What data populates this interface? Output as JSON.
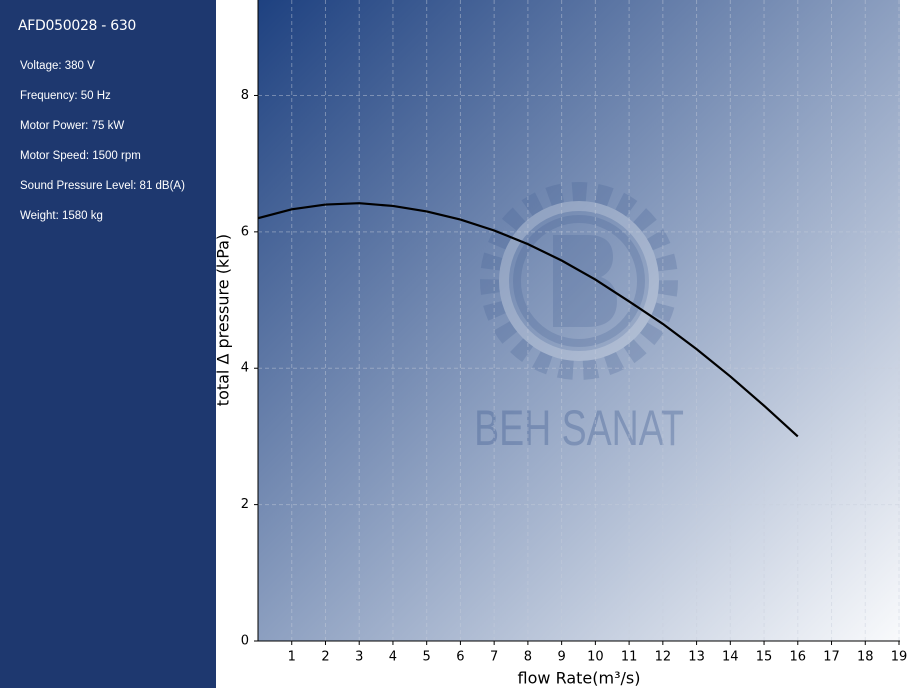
{
  "sidebar": {
    "title": "AFD050028 - 630",
    "specs": [
      "Voltage: 380 V",
      "Frequency: 50 Hz",
      "Motor Power: 75 kW",
      "Motor Speed: 1500 rpm",
      "Sound Pressure Level: 81 dB(A)",
      "Weight: 1580 kg"
    ]
  },
  "watermark": "BEH SANAT",
  "chart_data": {
    "type": "line",
    "x_label": "flow Rate(m³/s)",
    "y_label": "total Δ pressure (kPa)",
    "x": [
      0,
      1,
      2,
      3,
      4,
      5,
      6,
      7,
      8,
      9,
      10,
      11,
      12,
      13,
      14,
      15,
      16
    ],
    "series": [
      {
        "color": "#000000",
        "values": [
          6.2,
          6.33,
          6.4,
          6.42,
          6.38,
          6.3,
          6.18,
          6.02,
          5.82,
          5.58,
          5.3,
          4.98,
          4.65,
          4.28,
          3.88,
          3.45,
          3.0
        ]
      }
    ],
    "xlim": [
      0,
      19
    ],
    "xticks": [
      1,
      2,
      3,
      4,
      5,
      6,
      7,
      8,
      9,
      10,
      11,
      12,
      13,
      14,
      15,
      16,
      17,
      18,
      19
    ],
    "ylim": [
      0,
      9.4
    ],
    "yticks": [
      0,
      2,
      4,
      6,
      8
    ],
    "grid": true
  }
}
